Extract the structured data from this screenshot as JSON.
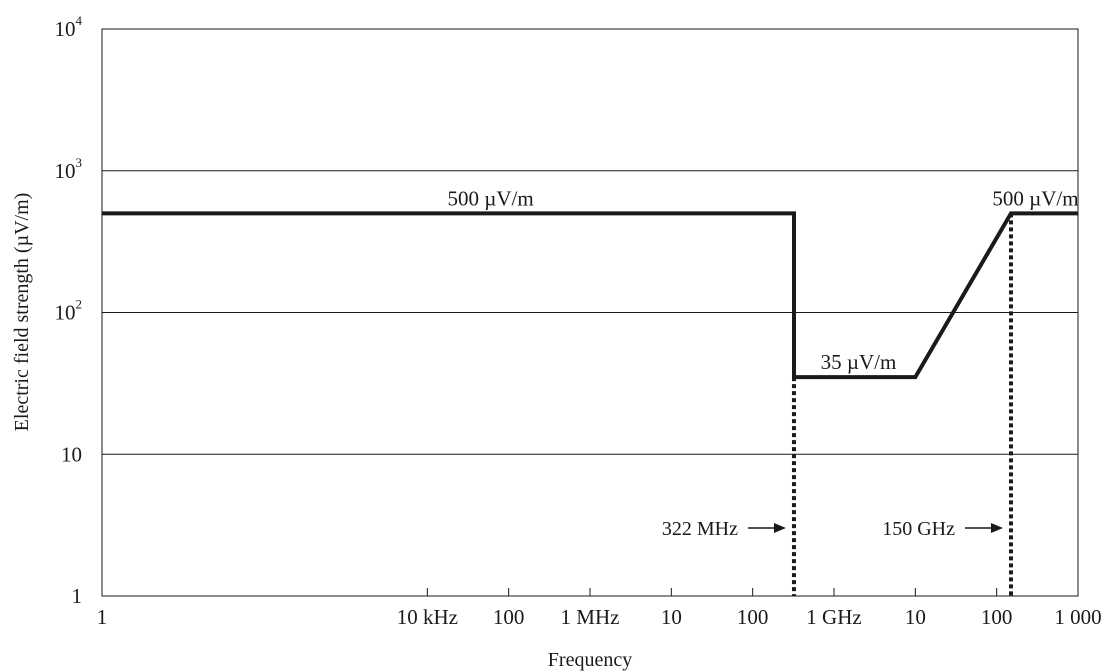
{
  "chart_data": {
    "type": "line",
    "title": "",
    "xlabel": "Frequency",
    "ylabel": "Electric field strength (µV/m)",
    "x_scale": "log",
    "y_scale": "log",
    "xlim": [
      1,
      1000000000000
    ],
    "ylim": [
      1,
      10000
    ],
    "grid": {
      "horizontal": true,
      "vertical": false
    },
    "x_ticks": [
      {
        "value": 1,
        "label": "1"
      },
      {
        "value": 10000,
        "label": "10 kHz"
      },
      {
        "value": 100000,
        "label": "100"
      },
      {
        "value": 1000000,
        "label": "1 MHz"
      },
      {
        "value": 10000000,
        "label": "10"
      },
      {
        "value": 100000000,
        "label": "100"
      },
      {
        "value": 1000000000,
        "label": "1 GHz"
      },
      {
        "value": 10000000000,
        "label": "10"
      },
      {
        "value": 100000000000,
        "label": "100"
      },
      {
        "value": 1000000000000,
        "label": "1 000"
      }
    ],
    "y_ticks": [
      {
        "value": 1,
        "base": "1",
        "exp": ""
      },
      {
        "value": 10,
        "base": "10",
        "exp": ""
      },
      {
        "value": 100,
        "base": "10",
        "exp": "2"
      },
      {
        "value": 1000,
        "base": "10",
        "exp": "3"
      },
      {
        "value": 10000,
        "base": "10",
        "exp": "4"
      }
    ],
    "series": [
      {
        "points": [
          {
            "x": 1,
            "y": 500
          },
          {
            "x": 322000000,
            "y": 500
          },
          {
            "x": 322000000,
            "y": 35
          },
          {
            "x": 10000000000,
            "y": 35
          },
          {
            "x": 150000000000,
            "y": 500
          },
          {
            "x": 1000000000000,
            "y": 500
          }
        ]
      }
    ],
    "series_labels": [
      {
        "text": "500 µV/m",
        "x": 60000,
        "y": 500
      },
      {
        "text": "35 µV/m",
        "x": 2000000000,
        "y": 35
      },
      {
        "text": "500 µV/m",
        "x": 300000000000,
        "y": 500
      }
    ],
    "markers": [
      {
        "x": 322000000,
        "y_top": 35,
        "label": "322 MHz"
      },
      {
        "x": 150000000000,
        "y_top": 500,
        "label": "150 GHz"
      }
    ],
    "colors": {
      "line": "#1a1a1a",
      "grid": "#1a1a1a"
    }
  }
}
